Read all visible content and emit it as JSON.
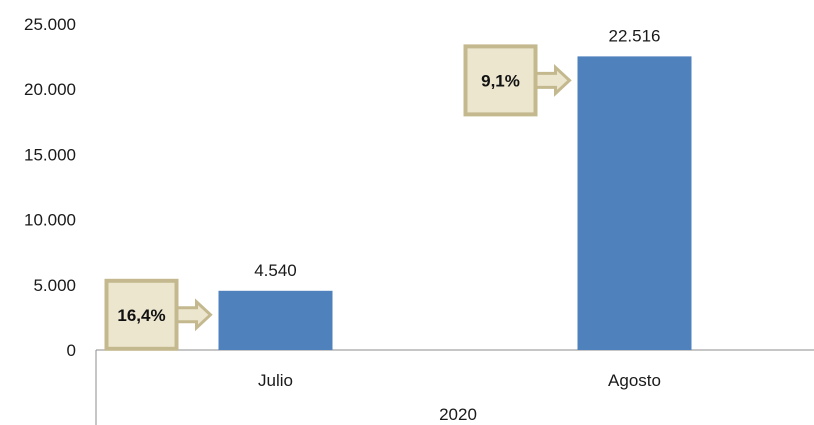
{
  "chart_data": {
    "type": "bar",
    "categories": [
      "Julio",
      "Agosto"
    ],
    "group_label": "2020",
    "values": [
      4540,
      22516
    ],
    "value_labels": [
      "4.540",
      "22.516"
    ],
    "ylim": [
      0,
      25000
    ],
    "yticks": [
      0,
      5000,
      10000,
      15000,
      20000,
      25000
    ],
    "ytick_labels": [
      "0",
      "5.000",
      "10.000",
      "15.000",
      "20.000",
      "25.000"
    ],
    "callouts": [
      "16,4%",
      "9,1%"
    ],
    "bar_color": "#4f81bd",
    "callout_fill": "#ece6cf",
    "callout_border": "#c4b98e",
    "grid": false,
    "legend": "none"
  }
}
